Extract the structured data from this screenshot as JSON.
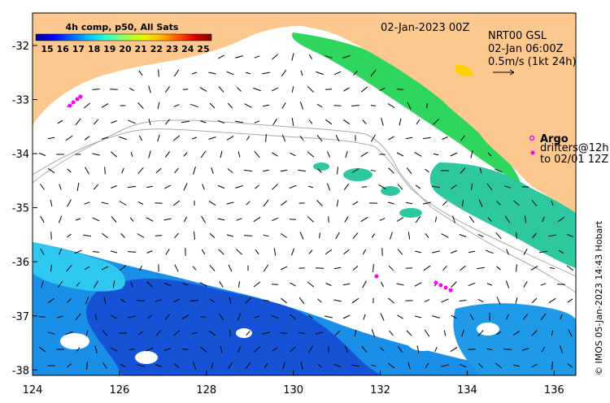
{
  "chart_data": {
    "type": "map",
    "title": "02-Jan-2023 00Z",
    "colorbar": {
      "title": "4h comp, p50, All Sats",
      "ticks": [
        "15",
        "16",
        "17",
        "18",
        "19",
        "20",
        "21",
        "22",
        "23",
        "24",
        "25"
      ],
      "range": [
        15,
        25
      ],
      "colors": [
        "#00008f",
        "#0000ff",
        "#0060ff",
        "#00c0ff",
        "#30ffd0",
        "#90ff60",
        "#e0ff00",
        "#ffc000",
        "#ff6000",
        "#e00000",
        "#800000"
      ]
    },
    "xaxis": {
      "ticks": [
        "124",
        "126",
        "128",
        "130",
        "132",
        "134",
        "136"
      ],
      "values": [
        124,
        126,
        128,
        130,
        132,
        134,
        136
      ],
      "range": [
        124,
        136.5
      ]
    },
    "yaxis": {
      "ticks": [
        "-32",
        "-33",
        "-34",
        "-35",
        "-36",
        "-37",
        "-38"
      ],
      "values": [
        -32,
        -33,
        -34,
        -35,
        -36,
        -37,
        -38
      ],
      "range": [
        -38.1,
        -31.4
      ]
    },
    "current_legend": {
      "line1": "NRT00 GSL",
      "line2": "02-Jan 06:00Z",
      "line3": "0.5m/s (1kt 24h)"
    },
    "argo": {
      "label": "Argo"
    },
    "drifters": {
      "line1": "drifters@12h",
      "line2": "to 02/01 12Z"
    },
    "credit": "© IMOS 05-Jan-2023 14:43 Hobart",
    "land_color": "#fcc88e",
    "argo_color": "#ff00ff"
  }
}
